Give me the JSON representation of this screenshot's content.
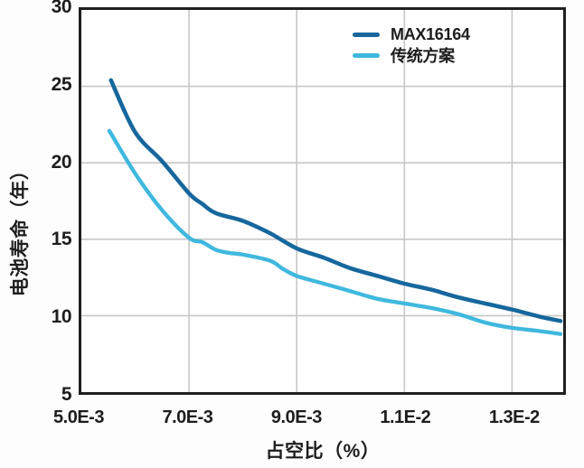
{
  "figure": {
    "background": "#fdfdfd",
    "border_color": "#1f1f1f",
    "grid_color": "#c7c7c7",
    "text_color": "#1d1d1d"
  },
  "chart_data": {
    "type": "line",
    "title": "",
    "xlabel": "占空比（%）",
    "ylabel": "电池寿命（年）",
    "xlim": [
      0.005,
      0.01395
    ],
    "ylim": [
      5,
      30
    ],
    "grid": true,
    "legend_position": "top-right-inside",
    "x_ticks": [
      {
        "value": 0.005,
        "label": "5.0E-3"
      },
      {
        "value": 0.007,
        "label": "7.0E-3"
      },
      {
        "value": 0.009,
        "label": "9.0E-3"
      },
      {
        "value": 0.011,
        "label": "1.1E-2"
      },
      {
        "value": 0.013,
        "label": "1.3E-2"
      }
    ],
    "y_ticks": [
      {
        "value": 30,
        "label": "30"
      },
      {
        "value": 25,
        "label": "25"
      },
      {
        "value": 20,
        "label": "20"
      },
      {
        "value": 15,
        "label": "15"
      },
      {
        "value": 10,
        "label": "10"
      },
      {
        "value": 5,
        "label": "5"
      }
    ],
    "series": [
      {
        "name": "MAX16164",
        "color": "#16679d",
        "stroke_width": 4.6,
        "points": [
          [
            0.00555,
            25.4
          ],
          [
            0.006,
            22.0
          ],
          [
            0.0065,
            20.1
          ],
          [
            0.007,
            18.0
          ],
          [
            0.00725,
            17.3
          ],
          [
            0.0075,
            16.7
          ],
          [
            0.008,
            16.2
          ],
          [
            0.0085,
            15.4
          ],
          [
            0.009,
            14.4
          ],
          [
            0.0095,
            13.8
          ],
          [
            0.01,
            13.1
          ],
          [
            0.0105,
            12.6
          ],
          [
            0.011,
            12.1
          ],
          [
            0.0115,
            11.7
          ],
          [
            0.012,
            11.2
          ],
          [
            0.0125,
            10.8
          ],
          [
            0.013,
            10.4
          ],
          [
            0.0135,
            9.95
          ],
          [
            0.0139,
            9.65
          ]
        ]
      },
      {
        "name": "传统方案",
        "color": "#3fb8de",
        "stroke_width": 4.4,
        "points": [
          [
            0.00552,
            22.1
          ],
          [
            0.006,
            19.3
          ],
          [
            0.0065,
            16.9
          ],
          [
            0.007,
            15.1
          ],
          [
            0.00725,
            14.8
          ],
          [
            0.0075,
            14.3
          ],
          [
            0.00775,
            14.1
          ],
          [
            0.008,
            14.0
          ],
          [
            0.0085,
            13.6
          ],
          [
            0.00875,
            13.05
          ],
          [
            0.009,
            12.6
          ],
          [
            0.0095,
            12.1
          ],
          [
            0.01,
            11.6
          ],
          [
            0.0105,
            11.1
          ],
          [
            0.011,
            10.8
          ],
          [
            0.0115,
            10.5
          ],
          [
            0.012,
            10.1
          ],
          [
            0.0125,
            9.55
          ],
          [
            0.013,
            9.2
          ],
          [
            0.0135,
            9.0
          ],
          [
            0.0139,
            8.8
          ]
        ]
      }
    ]
  }
}
